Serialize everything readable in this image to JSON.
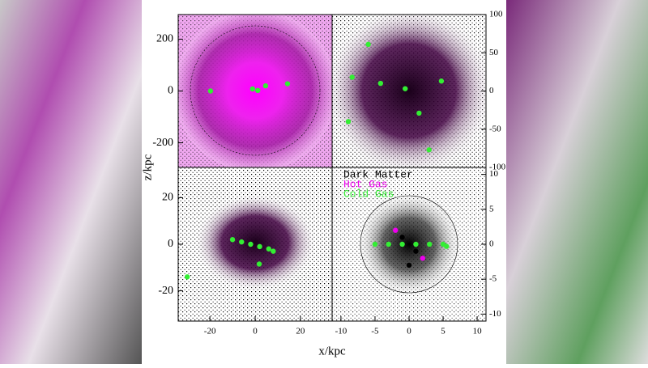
{
  "figure": {
    "xlabel": "x/kpc",
    "ylabel": "z/kpc"
  },
  "chart_data": [
    {
      "type": "scatter",
      "xlim": [
        -295,
        295
      ],
      "ylim": [
        -295,
        295
      ],
      "yticks": [
        -200,
        0,
        200
      ],
      "series": [
        {
          "color": "#33ee33",
          "x": [
            -171,
            -10,
            10,
            124,
            40
          ],
          "values": [
            0,
            8,
            2,
            28,
            20
          ]
        }
      ]
    },
    {
      "type": "scatter",
      "xlim": [
        -100,
        100
      ],
      "ylim": [
        -100,
        100
      ],
      "yticks": [
        -100,
        -50,
        0,
        50,
        100
      ],
      "series": [
        {
          "color": "#33ee33",
          "x": [
            -5,
            13,
            -37,
            -74,
            -53,
            42,
            -79,
            26
          ],
          "values": [
            3,
            -29,
            10,
            18,
            61,
            13,
            -40,
            -77
          ]
        }
      ]
    },
    {
      "type": "scatter",
      "xlim": [
        -34,
        34
      ],
      "ylim": [
        -33,
        33
      ],
      "xticks": [
        -20,
        0,
        20
      ],
      "yticks": [
        -20,
        0,
        20
      ],
      "series": [
        {
          "color": "#33ee33",
          "x": [
            -10,
            -6,
            -2,
            2,
            6,
            8,
            1.8,
            -30
          ],
          "values": [
            2,
            1,
            0,
            -1,
            -2,
            -3,
            -8.5,
            -14
          ]
        }
      ]
    },
    {
      "type": "scatter",
      "xlim": [
        -11.3,
        11.3
      ],
      "ylim": [
        -11,
        11
      ],
      "xticks": [
        -10,
        -5,
        0,
        5,
        10
      ],
      "yticks": [
        -10,
        -5,
        0,
        5,
        10
      ],
      "series": [
        {
          "name": "Dark Matter",
          "color": "#000000",
          "x": [
            -1,
            1,
            0
          ],
          "values": [
            1,
            -1,
            -3
          ]
        },
        {
          "name": "Hot Gas",
          "color": "#ee00ee",
          "x": [
            -2,
            2
          ],
          "values": [
            2,
            -2
          ]
        },
        {
          "name": "Cold Gas",
          "color": "#33ee33",
          "x": [
            -5,
            -3,
            -1,
            1,
            3,
            5,
            5.5
          ],
          "values": [
            0,
            0,
            0,
            0,
            0,
            0,
            -0.3
          ]
        }
      ]
    }
  ]
}
